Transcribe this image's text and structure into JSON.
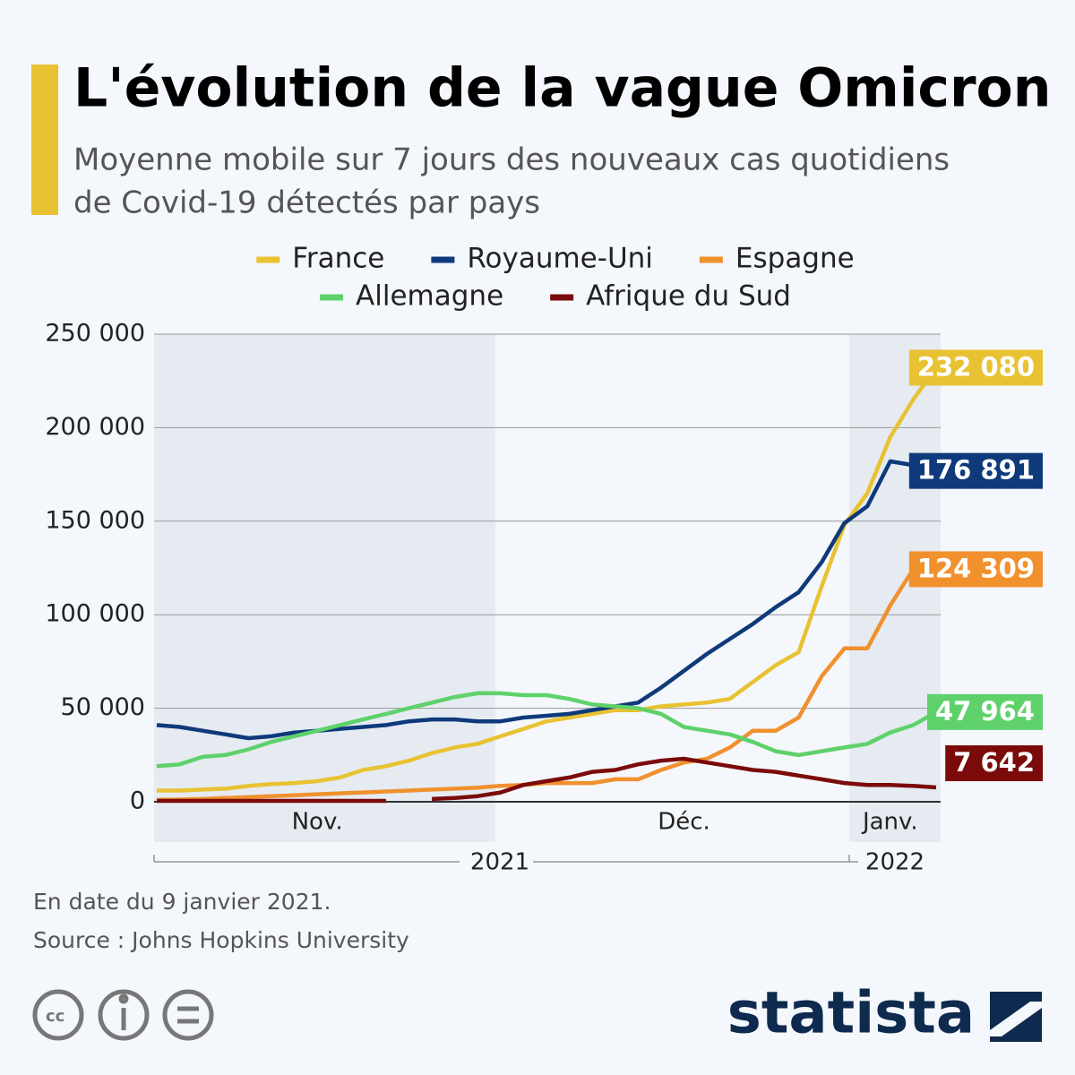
{
  "chart_data": {
    "type": "line",
    "title": "L'évolution de la vague Omicron",
    "subtitle": [
      "Moyenne mobile sur 7 jours des nouveaux cas quotidiens",
      "de Covid-19 détectés par pays"
    ],
    "categories": [
      null,
      null,
      null,
      null,
      null,
      null,
      null,
      "Nov.",
      null,
      null,
      null,
      null,
      null,
      null,
      null,
      null,
      null,
      null,
      null,
      null,
      null,
      null,
      null,
      "Déc.",
      null,
      null,
      null,
      null,
      null,
      null,
      null,
      null,
      "Janv.",
      null,
      null
    ],
    "years": [
      "2021",
      "2022"
    ],
    "ylim": [
      0,
      250000
    ],
    "yticks": [
      0,
      {
        "value": 50000,
        "label": "50 000"
      },
      {
        "value": 100000,
        "label": "100 000"
      },
      {
        "value": 150000,
        "label": "150 000"
      },
      {
        "value": 200000,
        "label": "200 000"
      },
      {
        "value": 250000,
        "label": "250 000"
      }
    ],
    "grid": true,
    "series": [
      {
        "name": "France",
        "color": "#e8c232",
        "values": [
          6000,
          6000,
          6500,
          7000,
          8500,
          9500,
          10000,
          11000,
          13000,
          17000,
          19000,
          22000,
          26000,
          29000,
          31000,
          35000,
          39000,
          43000,
          45000,
          47000,
          49000,
          49000,
          51000,
          52000,
          53000,
          55000,
          64000,
          73000,
          80000,
          115000,
          148000,
          165000,
          195000,
          215000,
          232080
        ],
        "value_labels": [
          null,
          null,
          null,
          null,
          null,
          null,
          null,
          null,
          null,
          null,
          null,
          null,
          null,
          null,
          null,
          null,
          null,
          null,
          null,
          null,
          null,
          null,
          null,
          null,
          null,
          null,
          null,
          null,
          null,
          null,
          null,
          null,
          null,
          null,
          "232 080"
        ]
      },
      {
        "name": "Royaume-Uni",
        "color": "#0e3a7b",
        "values": [
          41000,
          40000,
          38000,
          36000,
          34000,
          35000,
          37000,
          38000,
          39000,
          40000,
          41000,
          43000,
          44000,
          44000,
          43000,
          43000,
          45000,
          46000,
          47000,
          49000,
          51000,
          53000,
          61000,
          70000,
          79000,
          87000,
          95000,
          104000,
          112000,
          128000,
          149000,
          158000,
          182000,
          180000,
          176891
        ],
        "value_labels": [
          null,
          null,
          null,
          null,
          null,
          null,
          null,
          null,
          null,
          null,
          null,
          null,
          null,
          null,
          null,
          null,
          null,
          null,
          null,
          null,
          null,
          null,
          null,
          null,
          null,
          null,
          null,
          null,
          null,
          null,
          null,
          null,
          null,
          null,
          "176 891"
        ]
      },
      {
        "name": "Espagne",
        "color": "#f0912e",
        "values": [
          1000,
          1200,
          1500,
          2000,
          2500,
          3000,
          3500,
          4000,
          4500,
          5000,
          5500,
          6000,
          6500,
          7000,
          7500,
          8500,
          9000,
          10000,
          10000,
          10000,
          12000,
          12000,
          17000,
          21000,
          23000,
          29000,
          38000,
          38000,
          45000,
          67000,
          82000,
          82000,
          105000,
          124309,
          null
        ],
        "value_labels": [
          null,
          null,
          null,
          null,
          null,
          null,
          null,
          null,
          null,
          null,
          null,
          null,
          null,
          null,
          null,
          null,
          null,
          null,
          null,
          null,
          null,
          null,
          null,
          null,
          null,
          null,
          null,
          null,
          null,
          null,
          null,
          null,
          null,
          "124 309",
          null
        ]
      },
      {
        "name": "Allemagne",
        "color": "#5fd16b",
        "values": [
          19000,
          20000,
          24000,
          25000,
          28000,
          32000,
          35000,
          38000,
          41000,
          44000,
          47000,
          50000,
          53000,
          56000,
          58000,
          58000,
          57000,
          57000,
          55000,
          52000,
          51000,
          50000,
          47000,
          40000,
          38000,
          36000,
          32000,
          27000,
          25000,
          27000,
          29000,
          31000,
          37000,
          41000,
          47964
        ],
        "value_labels": [
          null,
          null,
          null,
          null,
          null,
          null,
          null,
          null,
          null,
          null,
          null,
          null,
          null,
          null,
          null,
          null,
          null,
          null,
          null,
          null,
          null,
          null,
          null,
          null,
          null,
          null,
          null,
          null,
          null,
          null,
          null,
          null,
          null,
          null,
          "47 964"
        ]
      },
      {
        "name": "Afrique du Sud",
        "color": "#7b0a0a",
        "values": [
          500,
          500,
          500,
          500,
          500,
          500,
          500,
          500,
          500,
          500,
          500,
          null,
          1500,
          2000,
          3000,
          5000,
          9000,
          11000,
          13000,
          16000,
          17000,
          20000,
          22000,
          23000,
          21000,
          19000,
          17000,
          16000,
          14000,
          12000,
          10000,
          9000,
          9000,
          8500,
          7642
        ],
        "value_labels": [
          null,
          null,
          null,
          null,
          null,
          null,
          null,
          null,
          null,
          null,
          null,
          null,
          null,
          null,
          null,
          null,
          null,
          null,
          null,
          null,
          null,
          null,
          null,
          null,
          null,
          null,
          null,
          null,
          null,
          null,
          null,
          null,
          null,
          null,
          "7 642"
        ]
      }
    ],
    "note": "En date du 9 janvier 2021.",
    "source": "Source : Johns Hopkins University",
    "brand": "statista"
  }
}
